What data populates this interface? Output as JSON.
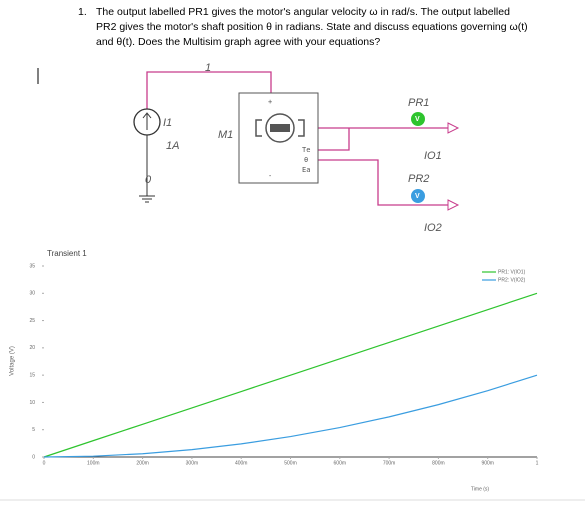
{
  "question": {
    "number": "1.",
    "lines": [
      "The output labelled PR1 gives the motor's angular velocity ω in rad/s. The output labelled",
      "PR2 gives the motor's shaft position θ in radians. State and discuss equations governing ω(t)",
      "and θ(t). Does the Multisim graph agree with your equations?"
    ]
  },
  "circuit": {
    "net": "1",
    "source_name": "I1",
    "source_value": "1A",
    "ground_net": "0",
    "motor_name": "M1",
    "motor_plus": "+",
    "motor_minus": "-",
    "motor_pins": [
      "Te",
      "θ",
      "Ea"
    ],
    "probes": [
      {
        "name": "PR1",
        "icon": "V",
        "output": "IO1"
      },
      {
        "name": "PR2",
        "icon": "V",
        "output": "IO2"
      }
    ]
  },
  "chart_data": {
    "type": "line",
    "title": "Transient 1",
    "xlabel": "Time (s)",
    "ylabel": "Voltage (V)",
    "x": [
      0,
      0.1,
      0.2,
      0.3,
      0.4,
      0.5,
      0.6,
      0.7,
      0.8,
      0.9,
      1
    ],
    "series": [
      {
        "name": "PR1: V(IO1)",
        "color": "#2ec42e",
        "values": [
          0,
          3,
          6,
          9,
          12,
          15,
          18,
          21,
          24,
          27,
          30
        ]
      },
      {
        "name": "PR2: V(IO2)",
        "color": "#3a9de0",
        "values": [
          0,
          0.15,
          0.6,
          1.35,
          2.4,
          3.75,
          5.4,
          7.35,
          9.6,
          12.15,
          15
        ]
      }
    ],
    "xlim": [
      0,
      1
    ],
    "ylim": [
      0,
      35
    ],
    "xticks": [
      0,
      {
        "value": 0.1,
        "label": "100m"
      },
      {
        "value": 0.2,
        "label": "200m"
      },
      {
        "value": 0.3,
        "label": "300m"
      },
      {
        "value": 0.4,
        "label": "400m"
      },
      {
        "value": 0.5,
        "label": "500m"
      },
      {
        "value": 0.6,
        "label": "600m"
      },
      {
        "value": 0.7,
        "label": "700m"
      },
      {
        "value": 0.8,
        "label": "800m"
      },
      {
        "value": 0.9,
        "label": "900m"
      },
      1
    ],
    "yticks": [
      0,
      5,
      10,
      15,
      20,
      25,
      30,
      35
    ],
    "legend": "top-right"
  }
}
